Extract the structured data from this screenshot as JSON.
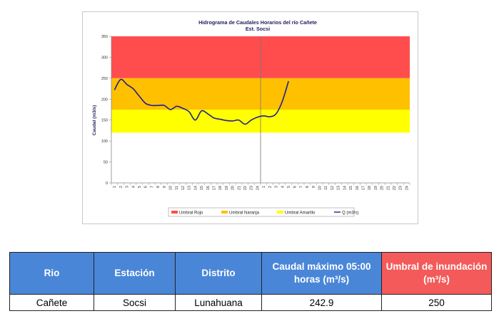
{
  "chart_data": {
    "type": "line",
    "title": "Hidrograma de Caudales Horarios del río Cañete",
    "subtitle": "Est. Socsi",
    "ylabel": "Caudal  (m3/s)",
    "ylim": [
      0,
      350
    ],
    "yticks": [
      "0",
      "50",
      "100",
      "150",
      "200",
      "250",
      "300",
      "350"
    ],
    "xticks": [
      "1",
      "2",
      "3",
      "4",
      "5",
      "6",
      "7",
      "8",
      "9",
      "10",
      "11",
      "12",
      "13",
      "14",
      "15",
      "16",
      "17",
      "18",
      "19",
      "20",
      "21",
      "22",
      "23",
      "24",
      "1",
      "2",
      "3",
      "4",
      "5",
      "6",
      "7",
      "8",
      "9",
      "10",
      "11",
      "12",
      "13",
      "14",
      "15",
      "16",
      "17",
      "18",
      "19",
      "20",
      "21",
      "22",
      "23",
      "24"
    ],
    "bands": [
      {
        "name": "Umbral Rojo",
        "from": 250,
        "to": 350,
        "color": "#ff4d4d"
      },
      {
        "name": "Umbral Naranja",
        "from": 175,
        "to": 250,
        "color": "#ffc000"
      },
      {
        "name": "Umbral Amarillo",
        "from": 120,
        "to": 175,
        "color": "#ffff00"
      }
    ],
    "series": [
      {
        "name": "Q (m3/s)",
        "color": "#1f1f8f",
        "x": [
          1,
          2,
          3,
          4,
          5,
          6,
          7,
          8,
          9,
          10,
          11,
          12,
          13,
          14,
          15,
          16,
          17,
          18,
          19,
          20,
          21,
          22,
          23,
          24,
          25,
          26,
          27,
          28,
          29
        ],
        "values": [
          222,
          247,
          235,
          225,
          207,
          190,
          185,
          185,
          185,
          175,
          183,
          178,
          170,
          150,
          172,
          165,
          155,
          152,
          149,
          148,
          150,
          140,
          150,
          157,
          160,
          158,
          165,
          195,
          242.9
        ]
      }
    ],
    "legend": "bottom",
    "grid": false
  },
  "table": {
    "headers": [
      "Rio",
      "Estación",
      "Distrito",
      "Caudal máximo 05:00 horas (m³/s)",
      "Umbral de inundación (m³/s)"
    ],
    "row": [
      "Cañete",
      "Socsi",
      "Lunahuana",
      "242.9",
      "250"
    ]
  }
}
